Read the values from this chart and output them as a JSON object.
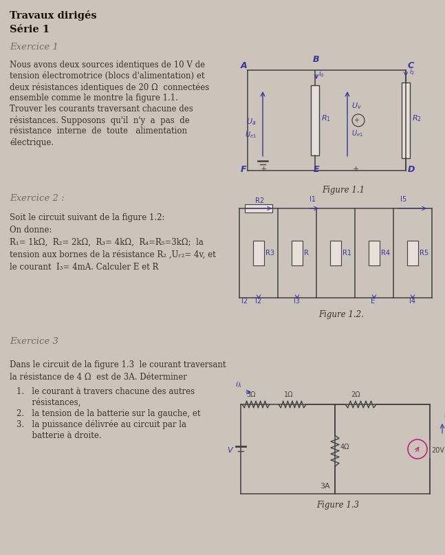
{
  "bg_color": "#ccc3ba",
  "text_color": "#3a3028",
  "bold_color": "#1a1008",
  "ink_color": "#2a2050",
  "title": "Travaux dirigés",
  "subtitle": "Série 1",
  "ex1_title": "Exercice 1",
  "ex1_lines": [
    "Nous avons deux sources identiques de 10 V de",
    "tension électromotrice (blocs d'alimentation) et",
    "deux résistances identiques de 20 Ω  connectées",
    "ensemble comme le montre la figure 1.1.",
    "Trouver les courants traversant chacune des",
    "résistances. Supposons  qu'il  n'y  a  pas  de",
    "résistance  interne  de  toute   alimentation",
    "électrique."
  ],
  "ex2_title": "Exercice 2 :",
  "ex2_lines": [
    "Soit le circuit suivant de la figure 1.2:",
    "On donne:",
    "R₁= 1kΩ,  R₂= 2kΩ,  R₃= 4kΩ,  R₄=R₅=3kΩ;  la",
    "tension aux bornes de la résistance R₂ ,Uᵣ₂= 4v, et",
    "le courant  I₃= 4mA. Calculer E et R"
  ],
  "ex3_title": "Exercice 3",
  "ex3_lines": [
    "Dans le circuit de la figure 1.3  le courant traversant",
    "la résistance de 4 Ω  est de 3A. Déterminer"
  ],
  "ex3_items": [
    "1.   le courant à travers chacune des autres",
    "      résistances,",
    "2.   la tension de la batterie sur la gauche, et",
    "3.   la puissance délivrée au circuit par la",
    "      batterie à droite."
  ],
  "fig1_caption": "Figure 1.1",
  "fig2_caption": "Figure 1.2.",
  "fig3_caption": "Figure 1.3"
}
